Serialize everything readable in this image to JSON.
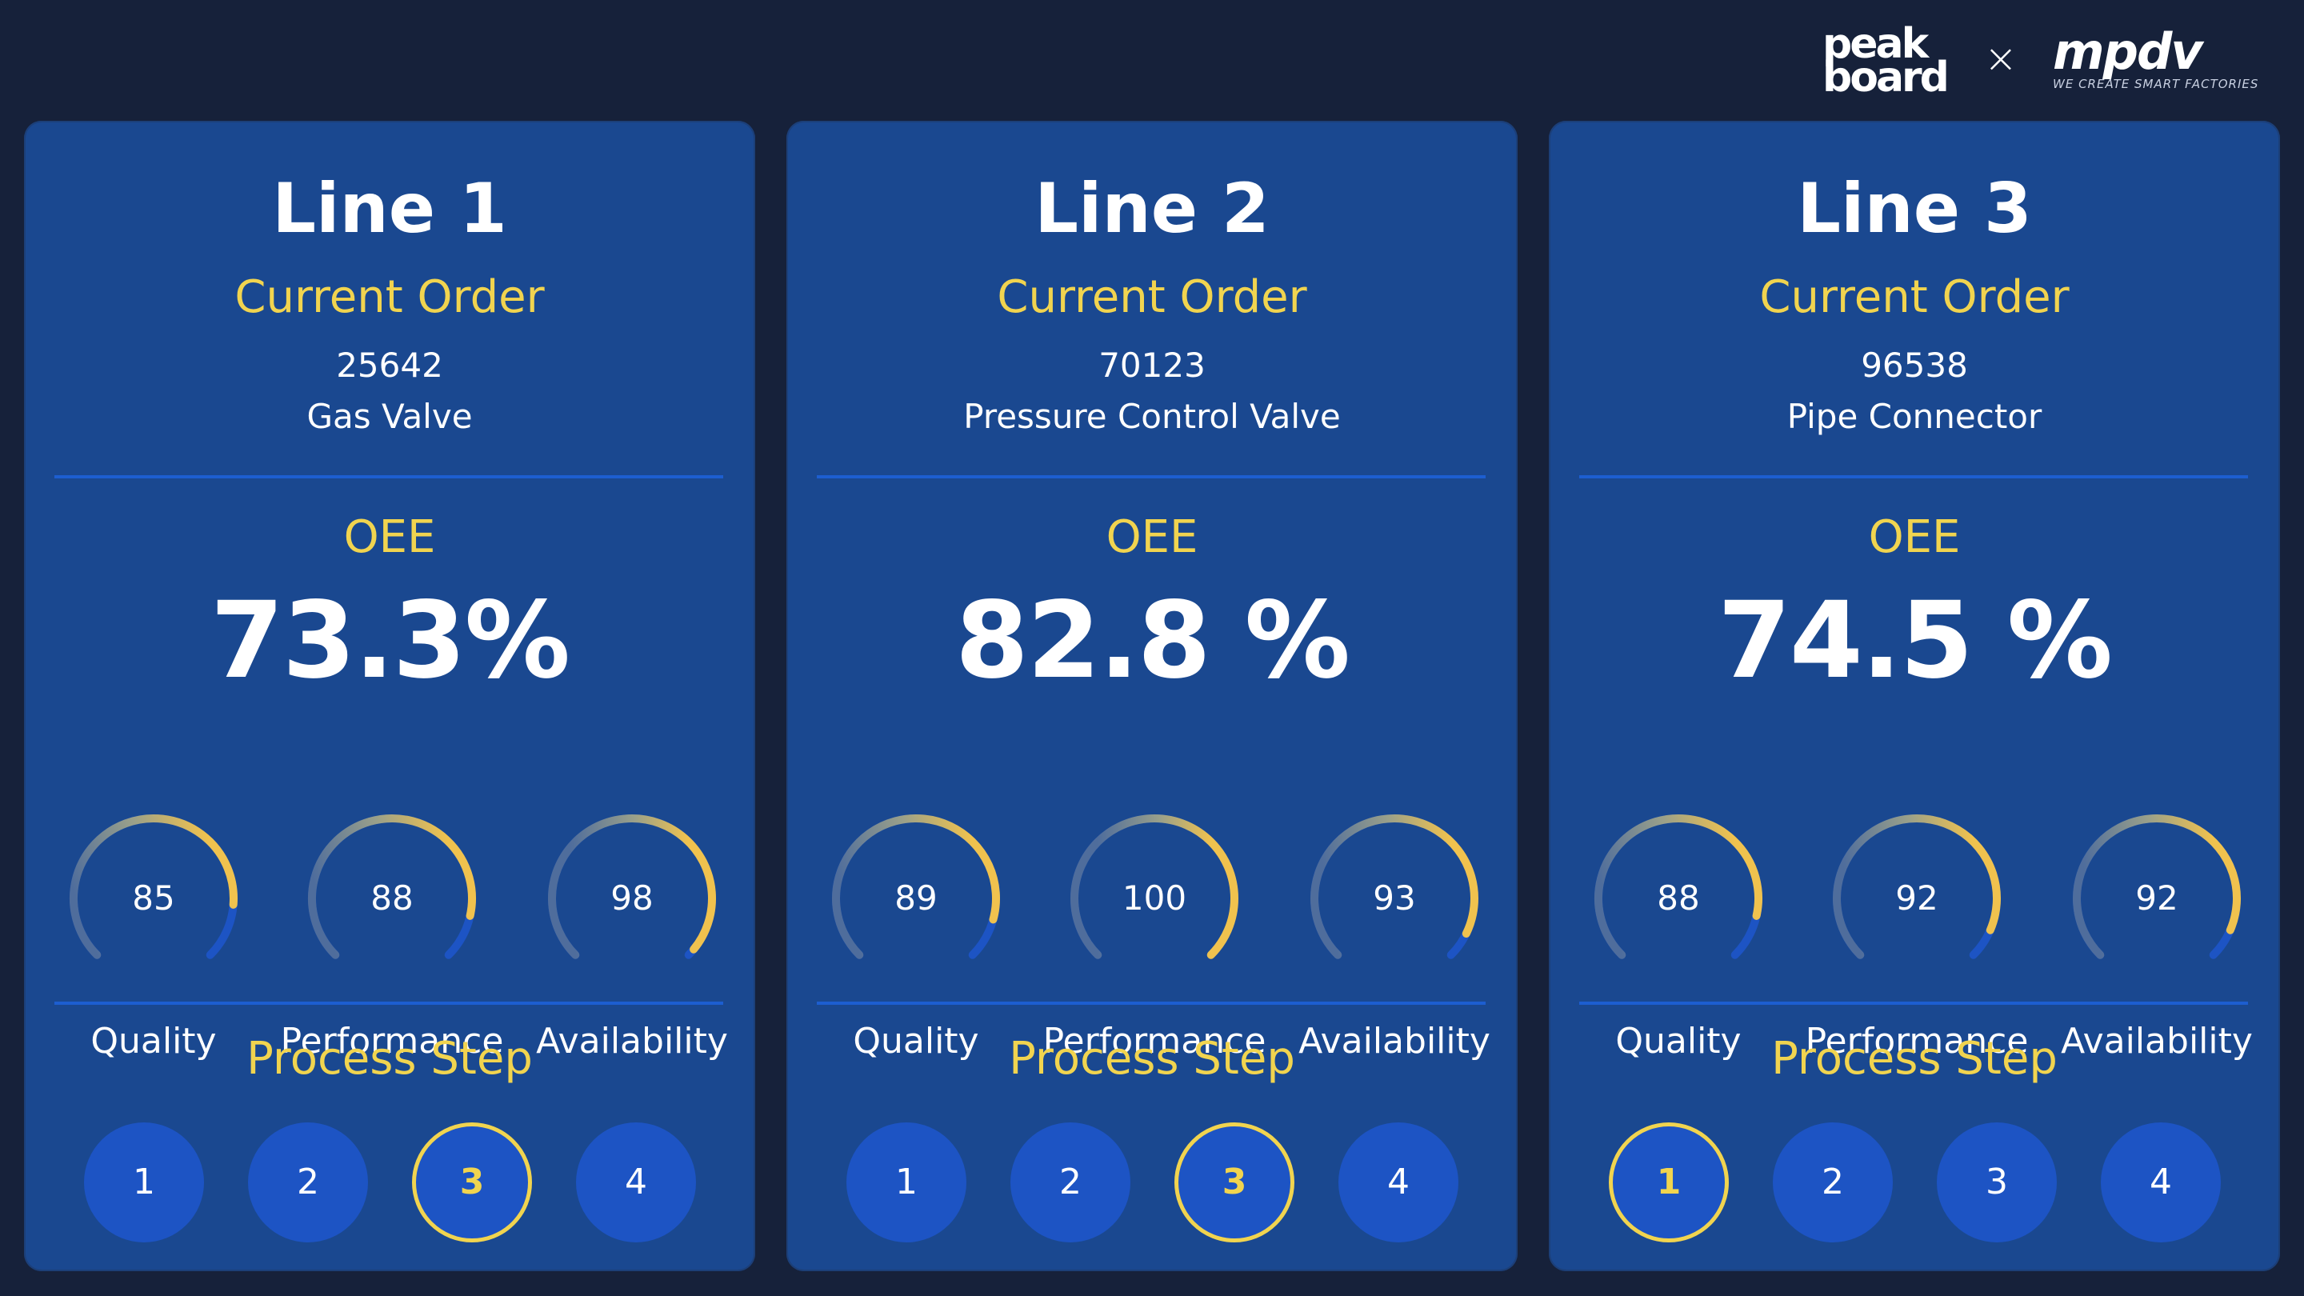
{
  "header": {
    "logo_left": "peak\nboard",
    "logo_left_line1": "peak",
    "logo_left_line2": "board",
    "separator": "×",
    "logo_right": "mpdv",
    "logo_right_tagline": "WE CREATE SMART FACTORIES"
  },
  "colors": {
    "background": "#16213a",
    "panel": "#1a4890",
    "accent_yellow": "#f1d44f",
    "gauge_blue": "#1d54c4",
    "gauge_track": "#4a6a9a",
    "step_fill": "#1d54c4"
  },
  "lines": [
    {
      "title": "Line 1",
      "order_label": "Current Order",
      "order_number": "25642",
      "product": "Gas Valve",
      "oee_label": "OEE",
      "oee_value": "73.3%",
      "gauges": [
        {
          "label": "Quality",
          "value": 85
        },
        {
          "label": "Performance",
          "value": 88
        },
        {
          "label": "Availability",
          "value": 98
        }
      ],
      "process_label": "Process Step",
      "steps": [
        "1",
        "2",
        "3",
        "4"
      ],
      "active_step": 3
    },
    {
      "title": "Line 2",
      "order_label": "Current Order",
      "order_number": "70123",
      "product": "Pressure Control Valve",
      "oee_label": "OEE",
      "oee_value": "82.8 %",
      "gauges": [
        {
          "label": "Quality",
          "value": 89
        },
        {
          "label": "Performance",
          "value": 100
        },
        {
          "label": "Availability",
          "value": 93
        }
      ],
      "process_label": "Process Step",
      "steps": [
        "1",
        "2",
        "3",
        "4"
      ],
      "active_step": 3
    },
    {
      "title": "Line 3",
      "order_label": "Current Order",
      "order_number": "96538",
      "product": "Pipe Connector",
      "oee_label": "OEE",
      "oee_value": "74.5 %",
      "gauges": [
        {
          "label": "Quality",
          "value": 88
        },
        {
          "label": "Performance",
          "value": 92
        },
        {
          "label": "Availability",
          "value": 92
        }
      ],
      "process_label": "Process Step",
      "steps": [
        "1",
        "2",
        "3",
        "4"
      ],
      "active_step": 1
    }
  ]
}
